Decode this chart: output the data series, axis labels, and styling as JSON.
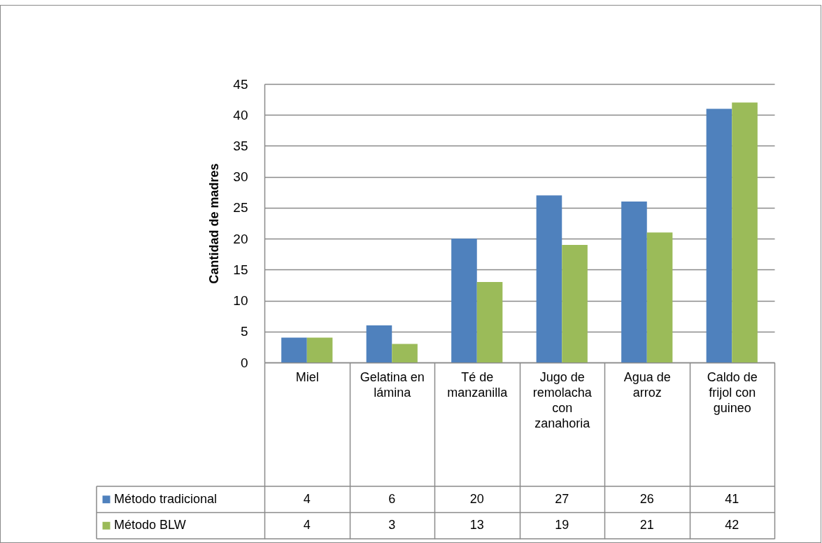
{
  "chart_data": {
    "type": "bar",
    "ylabel": "Cantidad de madres",
    "categories": [
      "Miel",
      "Gelatina en lámina",
      "Té de manzanilla",
      "Jugo de remolacha con zanahoria",
      "Agua de arroz",
      "Caldo de frijol con guineo"
    ],
    "series": [
      {
        "name": "Método tradicional",
        "color": "#4f81bd",
        "values": [
          4,
          6,
          20,
          27,
          26,
          41
        ]
      },
      {
        "name": "Método BLW",
        "color": "#9bbb59",
        "values": [
          4,
          3,
          13,
          19,
          21,
          42
        ]
      }
    ],
    "ylim": [
      0,
      45
    ],
    "yticks": [
      0,
      5,
      10,
      15,
      20,
      25,
      30,
      35,
      40,
      45
    ],
    "grid": "y",
    "legend": "bottom left",
    "data_labels": true
  }
}
